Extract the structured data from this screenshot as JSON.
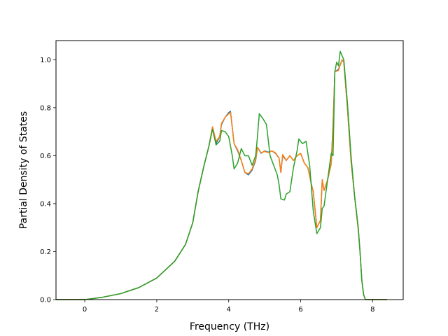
{
  "chart_data": {
    "type": "line",
    "title": "",
    "xlabel": "Frequency (THz)",
    "ylabel": "Partial Density of States",
    "xlim": [
      -0.8,
      8.85
    ],
    "ylim": [
      0.0,
      1.08
    ],
    "xticks": [
      0,
      2,
      4,
      6,
      8
    ],
    "yticks": [
      0.0,
      0.2,
      0.4,
      0.6,
      0.8,
      1.0
    ],
    "xtick_labels": [
      "0",
      "2",
      "4",
      "6",
      "8"
    ],
    "ytick_labels": [
      "0.0",
      "0.2",
      "0.4",
      "0.6",
      "0.8",
      "1.0"
    ],
    "grid": false,
    "legend": "none",
    "series": [
      {
        "color": "#1f77b4",
        "points": [
          [
            -0.8,
            0
          ],
          [
            0,
            0
          ],
          [
            0.5,
            0.01
          ],
          [
            1.0,
            0.025
          ],
          [
            1.5,
            0.05
          ],
          [
            2.0,
            0.09
          ],
          [
            2.5,
            0.16
          ],
          [
            2.8,
            0.23
          ],
          [
            3.0,
            0.32
          ],
          [
            3.15,
            0.45
          ],
          [
            3.3,
            0.55
          ],
          [
            3.45,
            0.64
          ],
          [
            3.55,
            0.72
          ],
          [
            3.65,
            0.65
          ],
          [
            3.75,
            0.68
          ],
          [
            3.8,
            0.73
          ],
          [
            3.9,
            0.76
          ],
          [
            4.0,
            0.78
          ],
          [
            4.05,
            0.785
          ],
          [
            4.15,
            0.65
          ],
          [
            4.25,
            0.62
          ],
          [
            4.35,
            0.58
          ],
          [
            4.45,
            0.53
          ],
          [
            4.55,
            0.52
          ],
          [
            4.65,
            0.54
          ],
          [
            4.75,
            0.58
          ],
          [
            4.8,
            0.635
          ],
          [
            4.9,
            0.61
          ],
          [
            5.0,
            0.62
          ],
          [
            5.1,
            0.615
          ],
          [
            5.2,
            0.62
          ],
          [
            5.3,
            0.61
          ],
          [
            5.4,
            0.59
          ],
          [
            5.45,
            0.53
          ],
          [
            5.5,
            0.6
          ],
          [
            5.6,
            0.58
          ],
          [
            5.7,
            0.6
          ],
          [
            5.8,
            0.58
          ],
          [
            5.9,
            0.6
          ],
          [
            6.0,
            0.61
          ],
          [
            6.1,
            0.57
          ],
          [
            6.2,
            0.55
          ],
          [
            6.3,
            0.48
          ],
          [
            6.35,
            0.45
          ],
          [
            6.45,
            0.3
          ],
          [
            6.55,
            0.33
          ],
          [
            6.6,
            0.5
          ],
          [
            6.65,
            0.455
          ],
          [
            6.75,
            0.5
          ],
          [
            6.85,
            0.57
          ],
          [
            6.9,
            0.73
          ],
          [
            6.95,
            0.95
          ],
          [
            7.05,
            0.96
          ],
          [
            7.15,
            1.0
          ],
          [
            7.2,
            0.99
          ],
          [
            7.3,
            0.8
          ],
          [
            7.4,
            0.58
          ],
          [
            7.5,
            0.43
          ],
          [
            7.6,
            0.3
          ],
          [
            7.65,
            0.2
          ],
          [
            7.7,
            0.08
          ],
          [
            7.75,
            0.02
          ],
          [
            7.8,
            0
          ],
          [
            8.4,
            0
          ]
        ]
      },
      {
        "color": "#ff7f0e",
        "points": [
          [
            -0.8,
            0
          ],
          [
            0,
            0
          ],
          [
            0.5,
            0.01
          ],
          [
            1.0,
            0.025
          ],
          [
            1.5,
            0.05
          ],
          [
            2.0,
            0.09
          ],
          [
            2.5,
            0.16
          ],
          [
            2.8,
            0.23
          ],
          [
            3.0,
            0.32
          ],
          [
            3.15,
            0.45
          ],
          [
            3.3,
            0.55
          ],
          [
            3.45,
            0.64
          ],
          [
            3.55,
            0.72
          ],
          [
            3.65,
            0.66
          ],
          [
            3.75,
            0.68
          ],
          [
            3.8,
            0.735
          ],
          [
            3.9,
            0.76
          ],
          [
            4.0,
            0.775
          ],
          [
            4.05,
            0.78
          ],
          [
            4.15,
            0.65
          ],
          [
            4.25,
            0.625
          ],
          [
            4.35,
            0.58
          ],
          [
            4.45,
            0.53
          ],
          [
            4.55,
            0.525
          ],
          [
            4.65,
            0.545
          ],
          [
            4.75,
            0.585
          ],
          [
            4.8,
            0.635
          ],
          [
            4.9,
            0.612
          ],
          [
            5.0,
            0.618
          ],
          [
            5.1,
            0.613
          ],
          [
            5.2,
            0.62
          ],
          [
            5.3,
            0.612
          ],
          [
            5.4,
            0.59
          ],
          [
            5.45,
            0.53
          ],
          [
            5.5,
            0.605
          ],
          [
            5.6,
            0.58
          ],
          [
            5.7,
            0.6
          ],
          [
            5.8,
            0.58
          ],
          [
            5.9,
            0.6
          ],
          [
            6.0,
            0.61
          ],
          [
            6.1,
            0.57
          ],
          [
            6.2,
            0.55
          ],
          [
            6.3,
            0.48
          ],
          [
            6.35,
            0.45
          ],
          [
            6.45,
            0.3
          ],
          [
            6.55,
            0.33
          ],
          [
            6.6,
            0.5
          ],
          [
            6.65,
            0.455
          ],
          [
            6.75,
            0.5
          ],
          [
            6.85,
            0.565
          ],
          [
            6.9,
            0.72
          ],
          [
            6.95,
            0.95
          ],
          [
            7.05,
            0.955
          ],
          [
            7.15,
            1.0
          ],
          [
            7.2,
            0.99
          ],
          [
            7.3,
            0.8
          ],
          [
            7.4,
            0.58
          ],
          [
            7.5,
            0.43
          ],
          [
            7.6,
            0.29
          ],
          [
            7.65,
            0.2
          ],
          [
            7.7,
            0.08
          ],
          [
            7.75,
            0.02
          ],
          [
            7.8,
            0
          ],
          [
            8.4,
            0
          ]
        ]
      },
      {
        "color": "#2ca02c",
        "points": [
          [
            -0.8,
            0
          ],
          [
            0,
            0
          ],
          [
            0.5,
            0.01
          ],
          [
            1.0,
            0.025
          ],
          [
            1.5,
            0.05
          ],
          [
            2.0,
            0.09
          ],
          [
            2.5,
            0.16
          ],
          [
            2.8,
            0.23
          ],
          [
            3.0,
            0.32
          ],
          [
            3.15,
            0.45
          ],
          [
            3.3,
            0.55
          ],
          [
            3.45,
            0.64
          ],
          [
            3.55,
            0.71
          ],
          [
            3.65,
            0.645
          ],
          [
            3.75,
            0.66
          ],
          [
            3.8,
            0.705
          ],
          [
            3.9,
            0.7
          ],
          [
            4.0,
            0.68
          ],
          [
            4.1,
            0.6
          ],
          [
            4.15,
            0.545
          ],
          [
            4.25,
            0.57
          ],
          [
            4.35,
            0.63
          ],
          [
            4.45,
            0.6
          ],
          [
            4.55,
            0.6
          ],
          [
            4.65,
            0.56
          ],
          [
            4.75,
            0.6
          ],
          [
            4.8,
            0.68
          ],
          [
            4.85,
            0.775
          ],
          [
            4.95,
            0.755
          ],
          [
            5.05,
            0.73
          ],
          [
            5.15,
            0.6
          ],
          [
            5.25,
            0.56
          ],
          [
            5.35,
            0.52
          ],
          [
            5.4,
            0.48
          ],
          [
            5.45,
            0.42
          ],
          [
            5.55,
            0.415
          ],
          [
            5.6,
            0.44
          ],
          [
            5.7,
            0.45
          ],
          [
            5.8,
            0.55
          ],
          [
            5.9,
            0.62
          ],
          [
            5.95,
            0.67
          ],
          [
            6.05,
            0.65
          ],
          [
            6.15,
            0.66
          ],
          [
            6.25,
            0.56
          ],
          [
            6.35,
            0.37
          ],
          [
            6.45,
            0.275
          ],
          [
            6.55,
            0.3
          ],
          [
            6.6,
            0.38
          ],
          [
            6.65,
            0.39
          ],
          [
            6.75,
            0.5
          ],
          [
            6.85,
            0.61
          ],
          [
            6.9,
            0.6
          ],
          [
            6.95,
            0.95
          ],
          [
            7.0,
            0.99
          ],
          [
            7.05,
            0.975
          ],
          [
            7.1,
            1.035
          ],
          [
            7.2,
            1.0
          ],
          [
            7.3,
            0.82
          ],
          [
            7.4,
            0.6
          ],
          [
            7.5,
            0.43
          ],
          [
            7.6,
            0.3
          ],
          [
            7.65,
            0.2
          ],
          [
            7.7,
            0.08
          ],
          [
            7.75,
            0.02
          ],
          [
            7.8,
            0
          ],
          [
            8.4,
            0
          ]
        ]
      }
    ]
  }
}
